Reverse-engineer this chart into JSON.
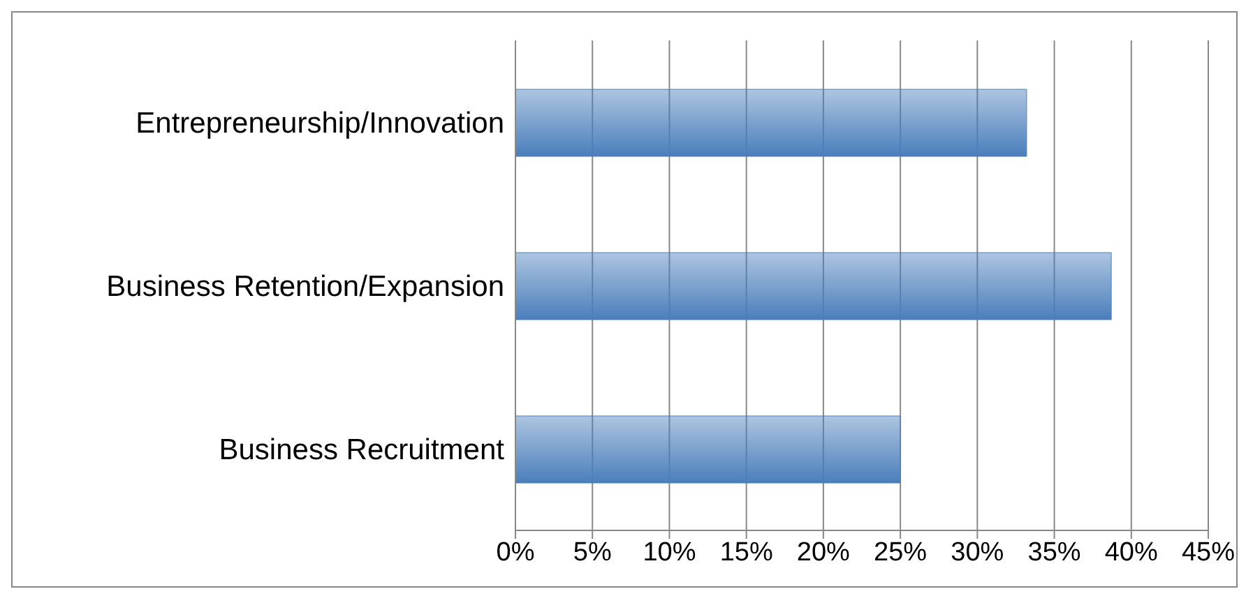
{
  "chart_data": {
    "type": "bar",
    "orientation": "horizontal",
    "categories": [
      "Entrepreneurship/Innovation",
      "Business Retention/Expansion",
      "Business Recruitment"
    ],
    "values": [
      33.2,
      38.7,
      25
    ],
    "color": "#4a7ebb",
    "xlim": [
      0,
      45
    ],
    "xticks": [
      {
        "value": 0,
        "label": "0%"
      },
      {
        "value": 5,
        "label": "5%"
      },
      {
        "value": 10,
        "label": "10%"
      },
      {
        "value": 15,
        "label": "15%"
      },
      {
        "value": 20,
        "label": "20%"
      },
      {
        "value": 25,
        "label": "25%"
      },
      {
        "value": 30,
        "label": "30%"
      },
      {
        "value": 35,
        "label": "35%"
      },
      {
        "value": 40,
        "label": "40%"
      },
      {
        "value": 45,
        "label": "45%"
      }
    ],
    "grid": "x",
    "legend": false
  }
}
